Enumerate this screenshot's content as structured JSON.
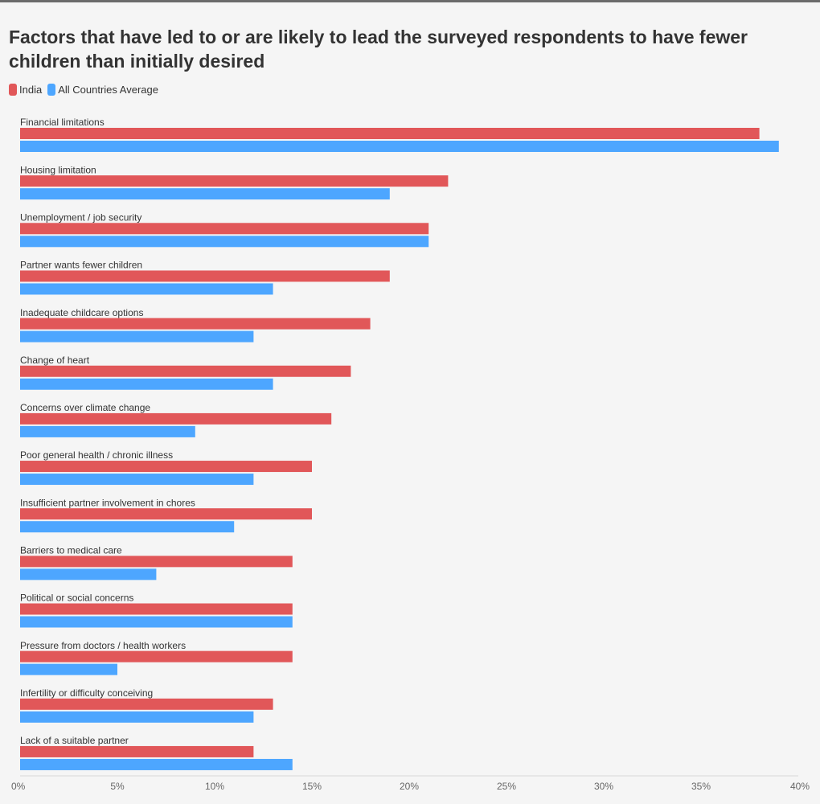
{
  "chart_data": {
    "type": "bar",
    "orientation": "horizontal",
    "title": "Factors that have led to or are likely to lead the surveyed respondents to have fewer children than initially desired",
    "xlabel": "",
    "ylabel": "",
    "xlim": [
      0,
      40
    ],
    "ticks": [
      "0%",
      "5%",
      "10%",
      "15%",
      "20%",
      "25%",
      "30%",
      "35%",
      "40%"
    ],
    "grid": false,
    "legend_position": "top-left",
    "categories": [
      "Financial limitations",
      "Housing limitation",
      "Unemployment / job security",
      "Partner wants fewer children",
      "Inadequate childcare options",
      "Change of heart",
      "Concerns over climate change",
      "Poor general health / chronic illness",
      "Insufficient partner involvement in chores",
      "Barriers to medical care",
      "Political or social concerns",
      "Pressure from doctors / health workers",
      "Infertility or difficulty conceiving",
      "Lack of a suitable partner"
    ],
    "series": [
      {
        "name": "India",
        "color": "#e15759",
        "values": [
          38,
          22,
          21,
          19,
          18,
          17,
          16,
          15,
          15,
          14,
          14,
          14,
          13,
          12
        ]
      },
      {
        "name": "All Countries Average",
        "color": "#4da6ff",
        "values": [
          39,
          19,
          21,
          13,
          12,
          13,
          9,
          12,
          11,
          7,
          14,
          5,
          12,
          14
        ]
      }
    ]
  }
}
